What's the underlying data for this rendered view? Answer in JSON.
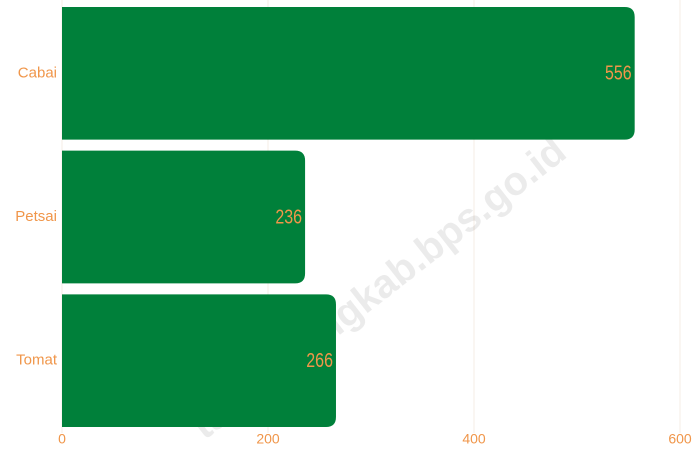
{
  "chart_data": {
    "type": "bar",
    "orientation": "horizontal",
    "categories": [
      "Cabai",
      "Petsai",
      "Tomat"
    ],
    "values": [
      556,
      236,
      266
    ],
    "color": "#00803a",
    "label_color": "#f0964a",
    "xlim": [
      0,
      600
    ],
    "xticks": [
      0,
      200,
      400,
      600
    ],
    "grid": true,
    "watermark": "tanatidungkab.bps.go.id"
  }
}
